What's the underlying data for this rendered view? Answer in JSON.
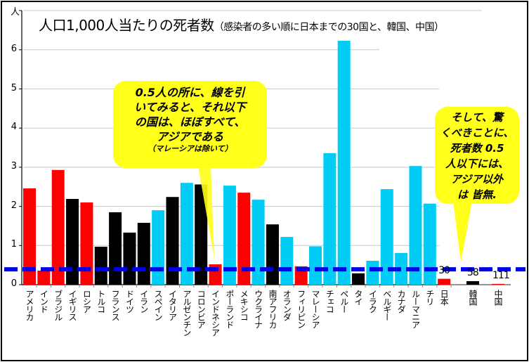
{
  "chart_data": {
    "type": "bar",
    "title": "人口1,000人当たりの死者数",
    "subtitle": "（感染者の多い順に日本までの30国と、韓国、中国）",
    "ylabel": "人",
    "ylim": [
      0,
      6.4
    ],
    "yticks": [
      "0",
      "1",
      "2",
      "3",
      "4",
      "5",
      "6"
    ],
    "grid": true,
    "threshold": 0.5,
    "colors": {
      "red": "#ff0000",
      "black": "#000000",
      "cyan": "#00ccf5",
      "threshold": "#0000ee",
      "callout": "#ffff1a"
    },
    "categories": [
      "アメリカ",
      "インド",
      "ブラジル",
      "イギリス",
      "ロシア",
      "トルコ",
      "フランス",
      "ドイツ",
      "イラン",
      "スペイン",
      "イタリア",
      "アルゼンチン",
      "コロンビア",
      "インドネシア",
      "ポーランド",
      "メキシコ",
      "ウクライナ",
      "南アフリカ",
      "オランダ",
      "フィリピン",
      "マレーシア",
      "チェコ",
      "ペルー",
      "タイ",
      "イラク",
      "ベルギー",
      "カナダ",
      "ルーマニア",
      "チリ",
      "日本",
      "韓国",
      "中国"
    ],
    "values": [
      2.46,
      0.36,
      2.93,
      2.19,
      2.1,
      0.97,
      1.85,
      1.33,
      1.58,
      1.9,
      2.24,
      2.6,
      2.56,
      0.52,
      2.53,
      2.35,
      2.17,
      1.54,
      1.22,
      0.47,
      0.98,
      3.36,
      6.23,
      0.29,
      0.61,
      2.44,
      0.81,
      3.03,
      2.07,
      0.15,
      0.09,
      0.02
    ],
    "bar_colors": [
      "red",
      "red",
      "red",
      "black",
      "red",
      "black",
      "black",
      "black",
      "black",
      "cyan",
      "black",
      "cyan",
      "black",
      "red",
      "cyan",
      "red",
      "cyan",
      "black",
      "cyan",
      "red",
      "cyan",
      "cyan",
      "cyan",
      "black",
      "cyan",
      "cyan",
      "cyan",
      "cyan",
      "cyan",
      "red",
      "black",
      "red"
    ],
    "data_labels": [
      {
        "category": "日本",
        "text": "30"
      },
      {
        "category": "韓国",
        "text": "58"
      },
      {
        "category": "中国",
        "text": "111"
      }
    ]
  },
  "callouts": {
    "left": {
      "lines": [
        "0.5人の所に、線を引",
        "いてみると、それ以下",
        "の国は、ほぼすべて、",
        "アジアである"
      ],
      "note": "（マレーシアは除いて）"
    },
    "right": {
      "lines": [
        "そして、驚",
        "くべきことに、",
        "死者数  0.5",
        "人以下には、",
        "アジア以外",
        "は 皆無."
      ]
    }
  }
}
